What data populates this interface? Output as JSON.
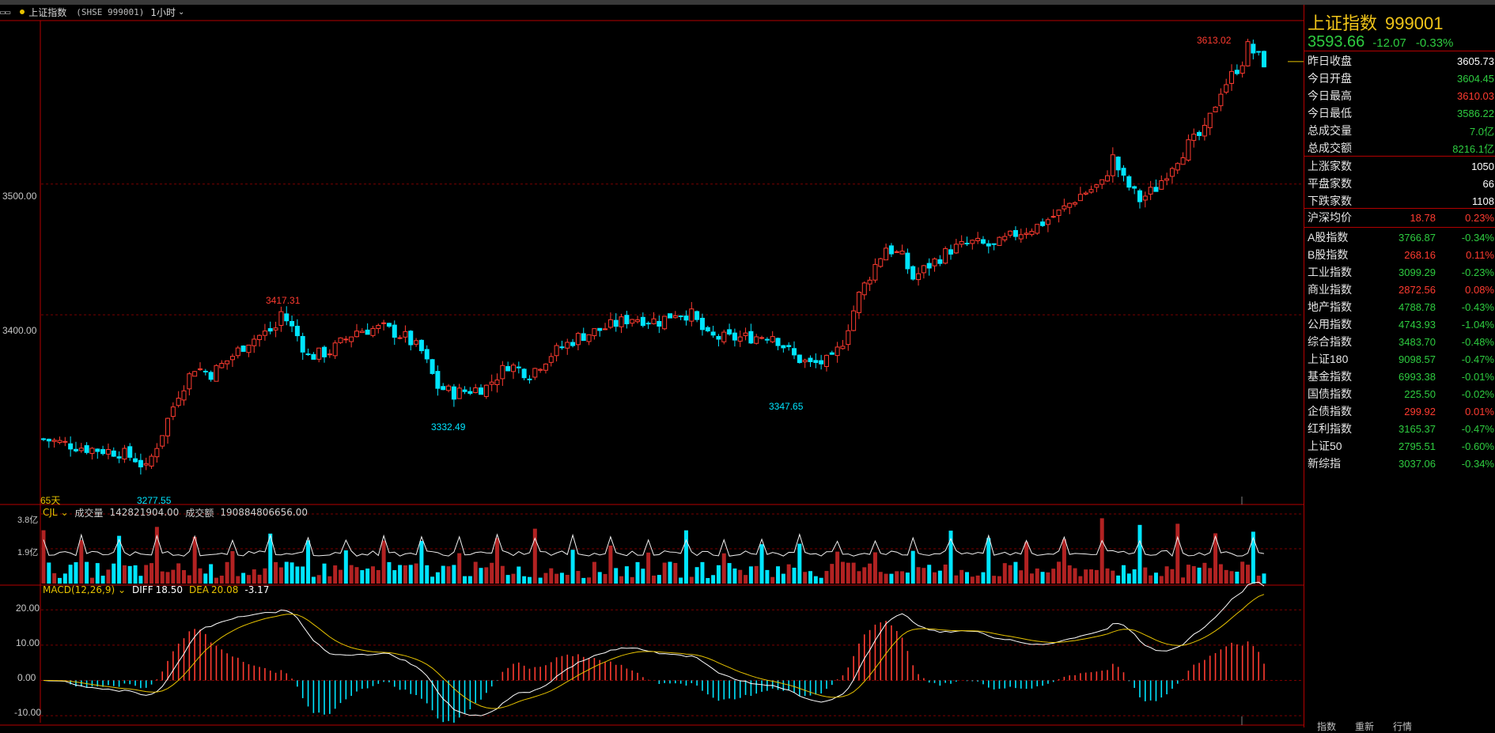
{
  "header": {
    "window_icon": "window-icon",
    "symbol_title": "上证指数",
    "symbol_code": "(SHSE 999001)",
    "period": "1小时"
  },
  "main_chart": {
    "y_ticks": [
      "3500.00",
      "3400.00"
    ],
    "annotations": {
      "high": "3613.02",
      "peak1": "3417.31",
      "low1": "3332.49",
      "low2": "3347.65",
      "low0": "3277.55"
    },
    "range_label": "65天",
    "colors": {
      "up": "#ff3b30",
      "down": "#00e5ff",
      "grid": "#7a0000",
      "border": "#b30000"
    }
  },
  "volume_panel": {
    "name": "CJL",
    "volume_label": "成交量",
    "volume_value": "142821904.00",
    "amount_label": "成交额",
    "amount_value": "190884806656.00",
    "y_ticks": [
      "3.8亿",
      "1.9亿"
    ]
  },
  "macd_panel": {
    "name": "MACD(12,26,9)",
    "diff_label": "DIFF",
    "diff_value": "18.50",
    "dea_label": "DEA",
    "dea_value": "20.08",
    "macd_value": "-3.17",
    "y_ticks": [
      "20.00",
      "10.00",
      "0.00",
      "-10.00"
    ]
  },
  "panel": {
    "name": "上证指数",
    "code": "999001",
    "price": "3593.66",
    "change": "-12.07",
    "change_pct": "-0.33%",
    "stats": [
      {
        "label": "昨日收盘",
        "value": "3605.73",
        "color": "wh"
      },
      {
        "label": "今日开盘",
        "value": "3604.45",
        "color": "dn"
      },
      {
        "label": "今日最高",
        "value": "3610.03",
        "color": "up"
      },
      {
        "label": "今日最低",
        "value": "3586.22",
        "color": "dn"
      },
      {
        "label": "总成交量",
        "value": "7.0亿",
        "color": "dn"
      },
      {
        "label": "总成交额",
        "value": "8216.1亿",
        "color": "dn"
      }
    ],
    "breadth": [
      {
        "label": "上涨家数",
        "value": "1050"
      },
      {
        "label": "平盘家数",
        "value": "66"
      },
      {
        "label": "下跌家数",
        "value": "1108"
      }
    ],
    "avg": {
      "label": "沪深均价",
      "value": "18.78",
      "pct": "0.23%"
    },
    "indices": [
      {
        "label": "A股指数",
        "value": "3766.87",
        "pct": "-0.34%",
        "color": "dn"
      },
      {
        "label": "B股指数",
        "value": "268.16",
        "pct": "0.11%",
        "color": "up"
      },
      {
        "label": "工业指数",
        "value": "3099.29",
        "pct": "-0.23%",
        "color": "dn"
      },
      {
        "label": "商业指数",
        "value": "2872.56",
        "pct": "0.08%",
        "color": "up"
      },
      {
        "label": "地产指数",
        "value": "4788.78",
        "pct": "-0.43%",
        "color": "dn"
      },
      {
        "label": "公用指数",
        "value": "4743.93",
        "pct": "-1.04%",
        "color": "dn"
      },
      {
        "label": "综合指数",
        "value": "3483.70",
        "pct": "-0.48%",
        "color": "dn"
      },
      {
        "label": "上证180",
        "value": "9098.57",
        "pct": "-0.47%",
        "color": "dn"
      },
      {
        "label": "基金指数",
        "value": "6993.38",
        "pct": "-0.01%",
        "color": "dn"
      },
      {
        "label": "国债指数",
        "value": "225.50",
        "pct": "-0.02%",
        "color": "dn"
      },
      {
        "label": "企债指数",
        "value": "299.92",
        "pct": "0.01%",
        "color": "up"
      },
      {
        "label": "红利指数",
        "value": "3165.37",
        "pct": "-0.47%",
        "color": "dn"
      },
      {
        "label": "上证50",
        "value": "2795.51",
        "pct": "-0.60%",
        "color": "dn"
      },
      {
        "label": "新综指",
        "value": "3037.06",
        "pct": "-0.34%",
        "color": "dn"
      }
    ],
    "tabs": [
      "指数",
      "重新",
      "行情"
    ]
  },
  "chart_data": {
    "type": "candlestick",
    "interval": "1小时",
    "price_ylim": [
      3255,
      3625
    ],
    "price_gridlines": [
      3500,
      3400
    ],
    "keypoints": [
      [
        0,
        3305
      ],
      [
        8,
        3298
      ],
      [
        14,
        3295
      ],
      [
        17,
        3290
      ],
      [
        19,
        3282
      ],
      [
        22,
        3310
      ],
      [
        25,
        3340
      ],
      [
        28,
        3360
      ],
      [
        31,
        3355
      ],
      [
        34,
        3365
      ],
      [
        38,
        3380
      ],
      [
        43,
        3390
      ],
      [
        44,
        3402
      ],
      [
        47,
        3384
      ],
      [
        49,
        3368
      ],
      [
        53,
        3372
      ],
      [
        58,
        3388
      ],
      [
        63,
        3390
      ],
      [
        67,
        3383
      ],
      [
        70,
        3372
      ],
      [
        73,
        3345
      ],
      [
        76,
        3340
      ],
      [
        82,
        3345
      ],
      [
        86,
        3362
      ],
      [
        90,
        3355
      ],
      [
        94,
        3370
      ],
      [
        99,
        3383
      ],
      [
        104,
        3390
      ],
      [
        109,
        3398
      ],
      [
        114,
        3395
      ],
      [
        117,
        3402
      ],
      [
        120,
        3400
      ],
      [
        123,
        3383
      ],
      [
        127,
        3382
      ],
      [
        131,
        3383
      ],
      [
        135,
        3385
      ],
      [
        139,
        3368
      ],
      [
        142,
        3362
      ],
      [
        146,
        3365
      ],
      [
        148,
        3380
      ],
      [
        151,
        3415
      ],
      [
        154,
        3438
      ],
      [
        156,
        3452
      ],
      [
        159,
        3444
      ],
      [
        161,
        3428
      ],
      [
        164,
        3438
      ],
      [
        168,
        3450
      ],
      [
        172,
        3455
      ],
      [
        176,
        3452
      ],
      [
        180,
        3462
      ],
      [
        184,
        3468
      ],
      [
        188,
        3478
      ],
      [
        192,
        3492
      ],
      [
        196,
        3500
      ],
      [
        198,
        3520
      ],
      [
        200,
        3503
      ],
      [
        203,
        3488
      ],
      [
        206,
        3497
      ],
      [
        209,
        3515
      ],
      [
        212,
        3530
      ],
      [
        215,
        3540
      ],
      [
        218,
        3572
      ],
      [
        222,
        3594
      ],
      [
        223,
        3605
      ],
      [
        226,
        3593
      ]
    ],
    "macd_ylim": [
      -12,
      27
    ],
    "macd_gridlines": [
      20,
      10,
      0,
      -10
    ],
    "volume_ylim": [
      0,
      3.8
    ]
  }
}
